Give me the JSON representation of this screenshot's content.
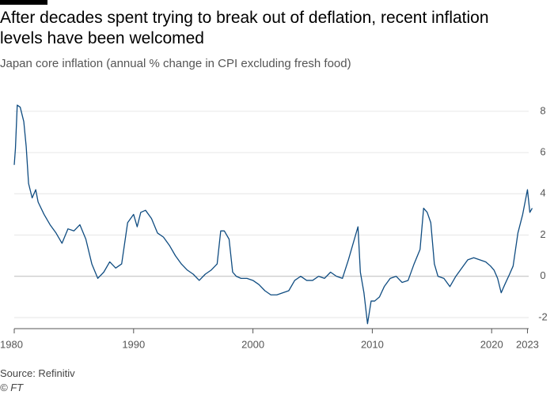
{
  "chart_data": {
    "type": "line",
    "title": "After decades spent trying to break out of deflation, recent inflation levels have been welcomed",
    "subtitle": "Japan core inflation (annual % change in CPI excluding fresh food)",
    "source": "Source: Refinitiv",
    "credit": "© FT",
    "xlim": [
      1980,
      2023.5
    ],
    "xticks": [
      1980,
      1990,
      2000,
      2010,
      2020,
      2023
    ],
    "ylim": [
      -2.5,
      8.8
    ],
    "yticks": [
      -2,
      0,
      2,
      4,
      6,
      8
    ],
    "grid": true,
    "series": [
      {
        "name": "Japan core inflation",
        "color": "#0f4c81",
        "x": [
          1980.0,
          1980.1,
          1980.25,
          1980.5,
          1980.8,
          1981.0,
          1981.2,
          1981.5,
          1981.8,
          1982.0,
          1982.5,
          1983.0,
          1983.5,
          1984.0,
          1984.5,
          1985.0,
          1985.5,
          1986.0,
          1986.5,
          1987.0,
          1987.5,
          1988.0,
          1988.5,
          1989.0,
          1989.5,
          1990.0,
          1990.3,
          1990.6,
          1991.0,
          1991.5,
          1992.0,
          1992.5,
          1993.0,
          1993.5,
          1994.0,
          1994.5,
          1995.0,
          1995.5,
          1996.0,
          1996.5,
          1997.0,
          1997.3,
          1997.6,
          1998.0,
          1998.3,
          1998.6,
          1999.0,
          1999.5,
          2000.0,
          2000.5,
          2001.0,
          2001.5,
          2002.0,
          2002.5,
          2003.0,
          2003.5,
          2004.0,
          2004.5,
          2005.0,
          2005.5,
          2006.0,
          2006.5,
          2007.0,
          2007.5,
          2008.0,
          2008.5,
          2008.8,
          2009.0,
          2009.3,
          2009.6,
          2009.9,
          2010.2,
          2010.6,
          2011.0,
          2011.5,
          2012.0,
          2012.5,
          2013.0,
          2013.5,
          2014.0,
          2014.3,
          2014.6,
          2014.9,
          2015.2,
          2015.5,
          2016.0,
          2016.5,
          2017.0,
          2017.5,
          2018.0,
          2018.5,
          2019.0,
          2019.5,
          2019.9,
          2020.2,
          2020.5,
          2020.8,
          2021.1,
          2021.5,
          2021.8,
          2022.2,
          2022.6,
          2023.0,
          2023.2,
          2023.4
        ],
        "values": [
          5.4,
          6.2,
          8.3,
          8.2,
          7.5,
          6.3,
          4.5,
          3.8,
          4.2,
          3.6,
          3.0,
          2.5,
          2.1,
          1.6,
          2.3,
          2.2,
          2.5,
          1.8,
          0.6,
          -0.1,
          0.2,
          0.7,
          0.4,
          0.6,
          2.6,
          3.0,
          2.4,
          3.1,
          3.2,
          2.8,
          2.1,
          1.9,
          1.5,
          1.0,
          0.6,
          0.3,
          0.1,
          -0.2,
          0.1,
          0.3,
          0.6,
          2.2,
          2.2,
          1.8,
          0.2,
          0.0,
          -0.1,
          -0.1,
          -0.2,
          -0.4,
          -0.7,
          -0.9,
          -0.9,
          -0.8,
          -0.7,
          -0.2,
          0.0,
          -0.2,
          -0.2,
          0.0,
          -0.1,
          0.2,
          0.0,
          -0.1,
          0.8,
          1.8,
          2.4,
          0.2,
          -0.8,
          -2.3,
          -1.2,
          -1.2,
          -1.0,
          -0.5,
          -0.1,
          0.0,
          -0.3,
          -0.2,
          0.6,
          1.3,
          3.3,
          3.1,
          2.6,
          0.6,
          0.0,
          -0.1,
          -0.5,
          0.0,
          0.4,
          0.8,
          0.9,
          0.8,
          0.7,
          0.5,
          0.3,
          -0.1,
          -0.8,
          -0.4,
          0.1,
          0.5,
          2.1,
          3.0,
          4.2,
          3.1,
          3.3
        ]
      }
    ]
  }
}
